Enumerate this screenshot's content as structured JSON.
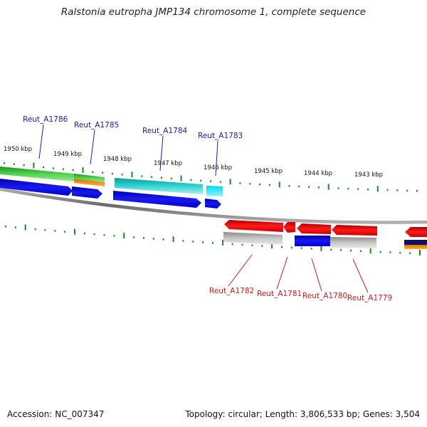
{
  "title": "Ralstonia eutropha JMP134 chromosome 1, complete sequence",
  "footer": {
    "accession": "Accession: NC_007347",
    "summary": "Topology: circular; Length: 3,806,533 bp; Genes: 3,504"
  },
  "kbp_labels": [
    "1950 kbp",
    "1949 kbp",
    "1948 kbp",
    "1947 kbp",
    "1946 kbp",
    "1945 kbp",
    "1944 kbp",
    "1943 kbp"
  ],
  "genes_top": [
    "Reut_A1786",
    "Reut_A1785",
    "Reut_A1784",
    "Reut_A1783"
  ],
  "genes_bottom": [
    "Reut_A1782",
    "Reut_A1781",
    "Reut_A1780",
    "Reut_A1779"
  ],
  "colors": {
    "forward_label": "#1a1aa8",
    "reverse_label": "#cc1a1a",
    "tick": "#1a8a1a",
    "backbone": "#8a8a8a"
  }
}
